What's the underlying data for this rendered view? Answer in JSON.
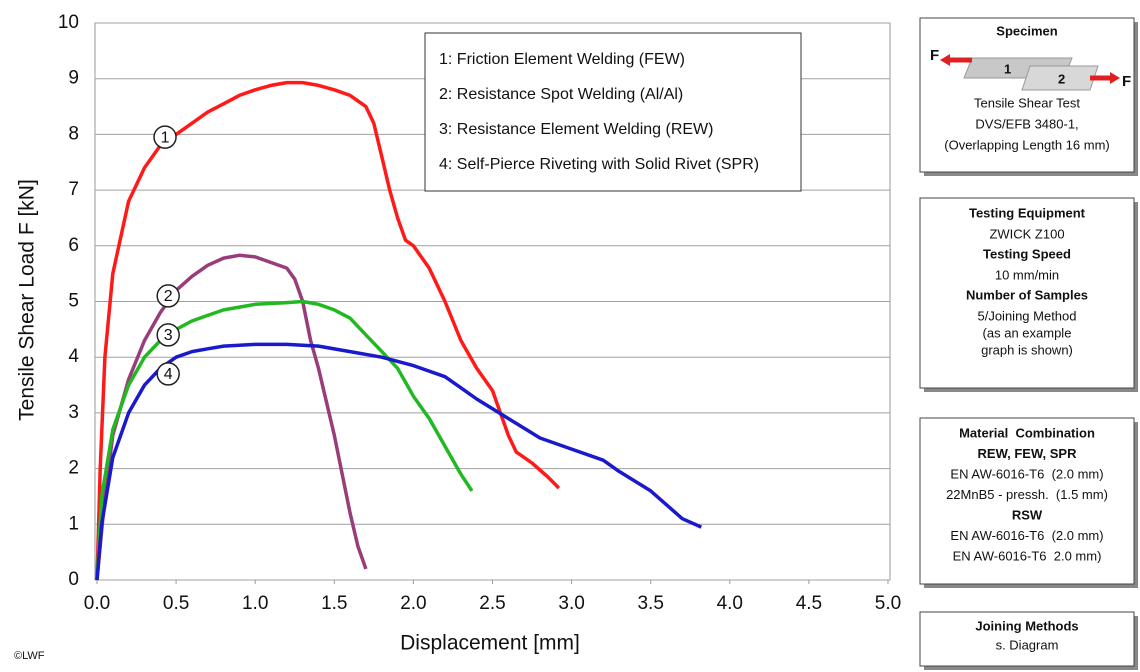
{
  "chart_data": {
    "type": "line",
    "xlabel": "Displacement  [mm]",
    "ylabel": "Tensile Shear Load F [kN]",
    "xlim": [
      0,
      5
    ],
    "ylim": [
      0,
      10
    ],
    "xticks": [
      {
        "value": 0,
        "label": "0.0"
      },
      0.5,
      {
        "value": 1,
        "label": "1.0"
      },
      1.5,
      {
        "value": 2,
        "label": "2.0"
      },
      2.5,
      {
        "value": 3,
        "label": "3.0"
      },
      3.5,
      {
        "value": 4,
        "label": "4.0"
      },
      4.5,
      {
        "value": 5,
        "label": "5.0"
      }
    ],
    "yticks": [
      0,
      1,
      2,
      3,
      4,
      5,
      6,
      7,
      8,
      9,
      10
    ],
    "grid": true,
    "legend": "top-right",
    "series": [
      {
        "name": "1: Friction Element Welding (FEW)",
        "color": "#ff1a1a",
        "x": [
          0,
          0.02,
          0.05,
          0.1,
          0.2,
          0.3,
          0.4,
          0.5,
          0.6,
          0.7,
          0.8,
          0.9,
          1.0,
          1.1,
          1.2,
          1.3,
          1.4,
          1.5,
          1.6,
          1.7,
          1.75,
          1.8,
          1.85,
          1.9,
          1.95,
          2.0,
          2.1,
          2.2,
          2.3,
          2.4,
          2.5,
          2.55,
          2.6,
          2.65,
          2.75,
          2.85,
          2.92
        ],
        "values": [
          0,
          2,
          4,
          5.5,
          6.8,
          7.4,
          7.8,
          8.0,
          8.2,
          8.4,
          8.55,
          8.7,
          8.8,
          8.88,
          8.93,
          8.93,
          8.88,
          8.8,
          8.7,
          8.5,
          8.2,
          7.6,
          7.0,
          6.5,
          6.1,
          6.0,
          5.6,
          5.0,
          4.3,
          3.8,
          3.4,
          3.0,
          2.6,
          2.3,
          2.1,
          1.85,
          1.65
        ]
      },
      {
        "name": "2: Resistance Spot Welding (Al/Al)",
        "color": "#993d7a",
        "x": [
          0,
          0.05,
          0.1,
          0.2,
          0.3,
          0.4,
          0.5,
          0.6,
          0.7,
          0.8,
          0.9,
          1.0,
          1.1,
          1.2,
          1.25,
          1.3,
          1.35,
          1.4,
          1.45,
          1.5,
          1.55,
          1.6,
          1.65,
          1.7
        ],
        "values": [
          0,
          1.5,
          2.6,
          3.6,
          4.3,
          4.8,
          5.2,
          5.45,
          5.65,
          5.78,
          5.83,
          5.8,
          5.7,
          5.6,
          5.4,
          5.0,
          4.3,
          3.8,
          3.2,
          2.6,
          1.9,
          1.2,
          0.6,
          0.2
        ]
      },
      {
        "name": "3: Resistance Element Welding (REW)",
        "color": "#22b822",
        "x": [
          0,
          0.03,
          0.1,
          0.2,
          0.3,
          0.4,
          0.5,
          0.6,
          0.7,
          0.8,
          0.9,
          1.0,
          1.2,
          1.3,
          1.4,
          1.5,
          1.6,
          1.7,
          1.8,
          1.9,
          2.0,
          2.1,
          2.2,
          2.3,
          2.37
        ],
        "values": [
          0,
          1.5,
          2.7,
          3.5,
          4.0,
          4.3,
          4.5,
          4.65,
          4.75,
          4.85,
          4.9,
          4.95,
          4.98,
          5.0,
          4.95,
          4.85,
          4.7,
          4.4,
          4.1,
          3.8,
          3.3,
          2.9,
          2.4,
          1.9,
          1.6
        ]
      },
      {
        "name": "4: Self-Pierce Riveting with Solid Rivet (SPR)",
        "color": "#1a1acc",
        "x": [
          0,
          0.03,
          0.1,
          0.2,
          0.3,
          0.4,
          0.5,
          0.6,
          0.7,
          0.8,
          1.0,
          1.2,
          1.4,
          1.6,
          1.8,
          2.0,
          2.2,
          2.3,
          2.4,
          2.6,
          2.8,
          3.0,
          3.2,
          3.3,
          3.5,
          3.6,
          3.7,
          3.82
        ],
        "values": [
          0,
          1.0,
          2.2,
          3.0,
          3.5,
          3.8,
          4.0,
          4.1,
          4.15,
          4.2,
          4.23,
          4.23,
          4.2,
          4.1,
          4.0,
          3.85,
          3.65,
          3.45,
          3.25,
          2.9,
          2.55,
          2.35,
          2.15,
          1.95,
          1.6,
          1.35,
          1.1,
          0.95
        ]
      }
    ],
    "annotations": [
      {
        "label": "1",
        "x": 0.43,
        "y": 7.95
      },
      {
        "label": "2",
        "x": 0.45,
        "y": 5.1
      },
      {
        "label": "3",
        "x": 0.45,
        "y": 4.4
      },
      {
        "label": "4",
        "x": 0.45,
        "y": 3.7
      }
    ]
  },
  "copyright": "©LWF",
  "specimen": {
    "title": "Specimen",
    "force_labels": [
      "F",
      "F"
    ],
    "parts": [
      "1",
      "2"
    ],
    "lines": [
      "Tensile Shear Test",
      "DVS/EFB 3480-1,",
      "(Overlapping Length 16 mm)"
    ]
  },
  "panels": [
    {
      "lines": [
        {
          "text": "Testing Equipment",
          "bold": true
        },
        {
          "text": "ZWICK Z100",
          "bold": false
        },
        {
          "text": "Testing Speed",
          "bold": true
        },
        {
          "text": "10 mm/min",
          "bold": false
        },
        {
          "text": "Number of Samples",
          "bold": true
        },
        {
          "text": "5/Joining Method",
          "bold": false
        },
        {
          "text": "(as an example",
          "bold": false
        },
        {
          "text": "graph is shown)",
          "bold": false
        }
      ]
    },
    {
      "lines": [
        {
          "text": "Material  Combination",
          "bold": true
        },
        {
          "text": "REW, FEW, SPR",
          "bold": true
        },
        {
          "text": "EN AW-6016-T6  (2.0 mm)",
          "bold": false
        },
        {
          "text": "22MnB5 - pressh.  (1.5 mm)",
          "bold": false
        },
        {
          "text": "RSW",
          "bold": true
        },
        {
          "text": "EN AW-6016-T6  (2.0 mm)",
          "bold": false
        },
        {
          "text": "EN AW-6016-T6  2.0 mm)",
          "bold": false
        }
      ]
    },
    {
      "lines": [
        {
          "text": "Joining Methods",
          "bold": true
        },
        {
          "text": "s. Diagram",
          "bold": false
        }
      ]
    }
  ]
}
